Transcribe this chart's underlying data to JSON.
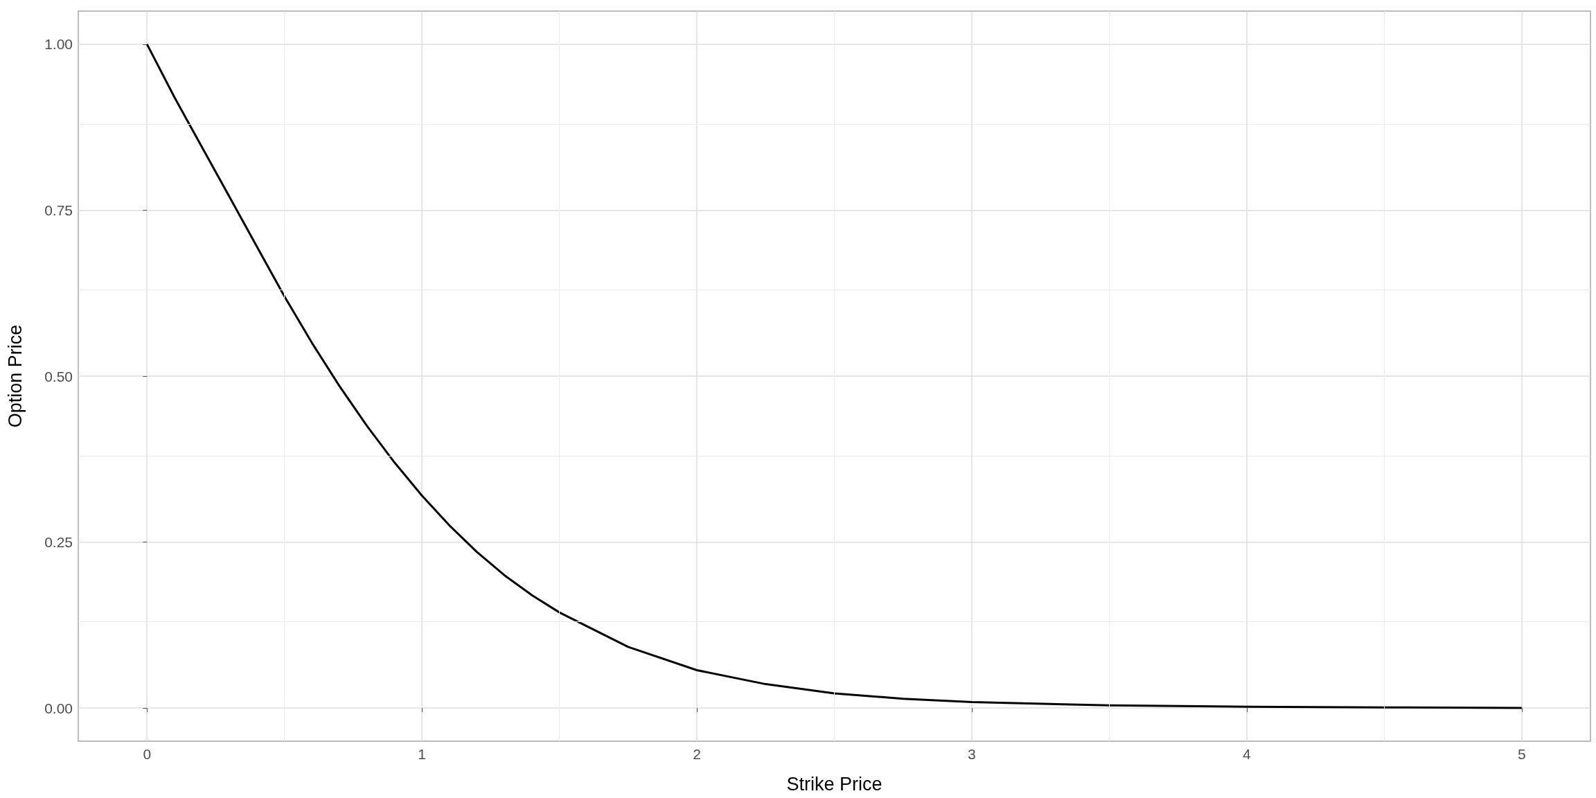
{
  "chart_data": {
    "type": "line",
    "xlabel": "Strike Price",
    "ylabel": "Option Price",
    "x": [
      0,
      0.1,
      0.2,
      0.3,
      0.4,
      0.5,
      0.6,
      0.7,
      0.8,
      0.9,
      1,
      1.1,
      1.2,
      1.3,
      1.4,
      1.5,
      1.75,
      2,
      2.25,
      2.5,
      2.75,
      3,
      3.5,
      4,
      4.5,
      5
    ],
    "series": [
      {
        "color": "#000000",
        "values": [
          1,
          0.92,
          0.845,
          0.77,
          0.695,
          0.62,
          0.55,
          0.485,
          0.425,
          0.37,
          0.32,
          0.275,
          0.235,
          0.2,
          0.17,
          0.144,
          0.092,
          0.057,
          0.036,
          0.022,
          0.014,
          0.009,
          0.004,
          0.002,
          0.001,
          0
        ]
      }
    ],
    "xlim": [
      -0.25,
      5.25
    ],
    "xticks": [
      0,
      1,
      2,
      3,
      4,
      5
    ],
    "ylim": [
      -0.05,
      1.05
    ],
    "yticks": [
      {
        "value": 0,
        "label": "0.00"
      },
      {
        "value": 0.25,
        "label": "0.25"
      },
      {
        "value": 0.5,
        "label": "0.50"
      },
      {
        "value": 0.75,
        "label": "0.75"
      },
      {
        "value": 1,
        "label": "1.00"
      }
    ],
    "grid": true,
    "marker": "none",
    "line_style": "solid"
  }
}
